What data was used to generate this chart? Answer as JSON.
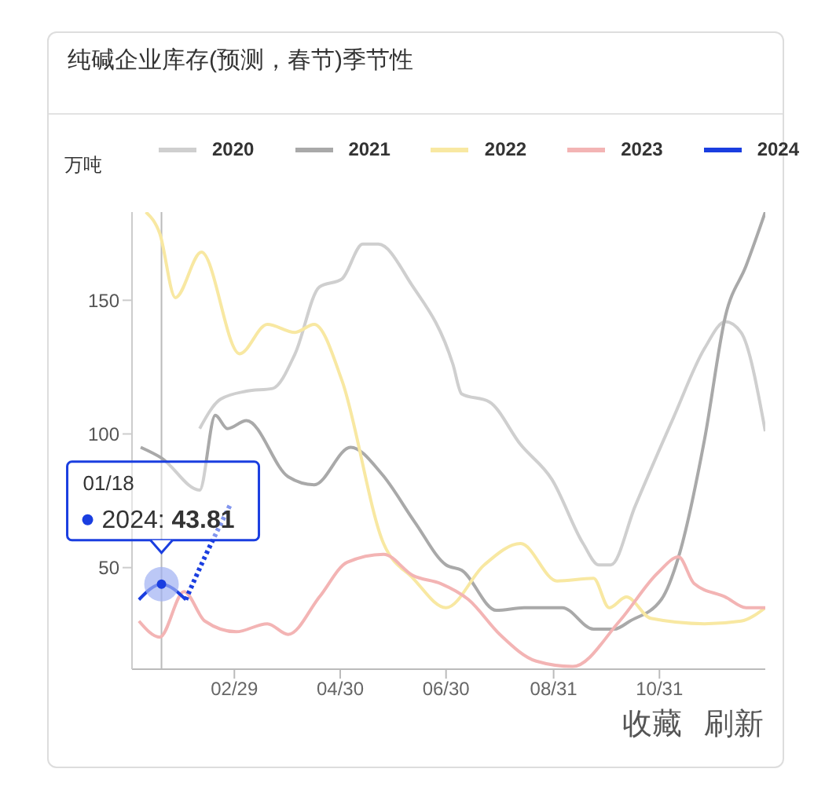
{
  "chart_data": {
    "type": "line",
    "title": "纯碱企业库存(预测，春节)季节性",
    "ylabel": "万吨",
    "xlim": [
      "--01-01",
      "--12-31"
    ],
    "xticks": [
      {
        "value": "--02-29",
        "label": "02/29"
      },
      {
        "value": "--04-30",
        "label": "04/30"
      },
      {
        "value": "--06-30",
        "label": "06/30"
      },
      {
        "value": "--08-31",
        "label": "08/31"
      },
      {
        "value": "--10-31",
        "label": "10/31"
      }
    ],
    "ylim": [
      12,
      183
    ],
    "yticks": [
      50,
      100,
      150
    ],
    "grid": false,
    "legend": "top",
    "marker": "none",
    "series": [
      {
        "name": "2020",
        "color": "#cfcfcf",
        "x": [
          "--02-09",
          "--02-21",
          "--03-07",
          "--03-22",
          "--04-04",
          "--04-18",
          "--05-01",
          "--05-13",
          "--05-22",
          "--06-10",
          "--07-04",
          "--07-09",
          "--07-25",
          "--08-12",
          "--08-30",
          "--09-17",
          "--09-26",
          "--10-03",
          "--10-17",
          "--11-08",
          "--11-26",
          "--12-08",
          "--12-17",
          "--12-31"
        ],
        "values": [
          102,
          113,
          116,
          117,
          130,
          155,
          158,
          171,
          171,
          156,
          126,
          115,
          112,
          96,
          83,
          59,
          51,
          51,
          73,
          106,
          132,
          142,
          138,
          101
        ]
      },
      {
        "name": "2021",
        "color": "#a9a9a9",
        "x": [
          "--01-06",
          "--01-18",
          "--02-09",
          "--02-18",
          "--02-25",
          "--03-07",
          "--03-31",
          "--04-15",
          "--05-06",
          "--05-24",
          "--06-12",
          "--06-30",
          "--07-09",
          "--07-29",
          "--08-14",
          "--09-05",
          "--09-23",
          "--10-05",
          "--10-14",
          "--11-01",
          "--11-11",
          "--11-26",
          "--12-08",
          "--12-20",
          "--12-31"
        ],
        "values": [
          95,
          91,
          79,
          107,
          102,
          105,
          84,
          81,
          95,
          85,
          67,
          51,
          49,
          34,
          35,
          35,
          27,
          27,
          30,
          38,
          54,
          98,
          144,
          163,
          183
        ]
      },
      {
        "name": "2022",
        "color": "#f8e8a2",
        "x": [
          "--01-09",
          "--01-17",
          "--01-26",
          "--02-10",
          "--03-03",
          "--03-19",
          "--04-04",
          "--04-15",
          "--05-01",
          "--05-25",
          "--06-11",
          "--06-30",
          "--07-22",
          "--08-12",
          "--09-02",
          "--09-23",
          "--10-02",
          "--10-12",
          "--10-26",
          "--11-26",
          "--12-17",
          "--12-31"
        ],
        "values": [
          183,
          175,
          151,
          168,
          130,
          141,
          138,
          141,
          120,
          59,
          46,
          35,
          51,
          59,
          45,
          46,
          35,
          39,
          31,
          29,
          30,
          35
        ]
      },
      {
        "name": "2023",
        "color": "#f3b4b4",
        "x": [
          "--01-05",
          "--01-17",
          "--01-31",
          "--02-12",
          "--03-01",
          "--03-19",
          "--03-31",
          "--04-18",
          "--05-04",
          "--05-25",
          "--06-11",
          "--06-27",
          "--07-13",
          "--07-31",
          "--08-21",
          "--09-11",
          "--10-08",
          "--10-30",
          "--11-11",
          "--11-20",
          "--12-08",
          "--12-20",
          "--12-31"
        ],
        "values": [
          30,
          24,
          41,
          30,
          26,
          29,
          25,
          39,
          52,
          55,
          47,
          44,
          38,
          25,
          15,
          13,
          30,
          48,
          54,
          44,
          39,
          35,
          35
        ]
      },
      {
        "name": "2024",
        "color": "#1a3ee0",
        "x": [
          "--01-05",
          "--01-18",
          "--02-01"
        ],
        "values": [
          38,
          43.81,
          38
        ]
      },
      {
        "color": "#1a3ee0",
        "line_style": "dotted",
        "x": [
          "--02-01",
          "--02-12",
          "--02-27"
        ],
        "values": [
          38,
          54,
          74
        ]
      }
    ],
    "ref_lines": [
      {
        "axis": "x",
        "value": "--01-18",
        "color": "#bbbbbb"
      }
    ],
    "annotations": [
      {
        "text": "01/18\n2024: 43.81",
        "x": "--01-18",
        "y": 43.81
      },
      "收藏",
      "刷新"
    ]
  }
}
